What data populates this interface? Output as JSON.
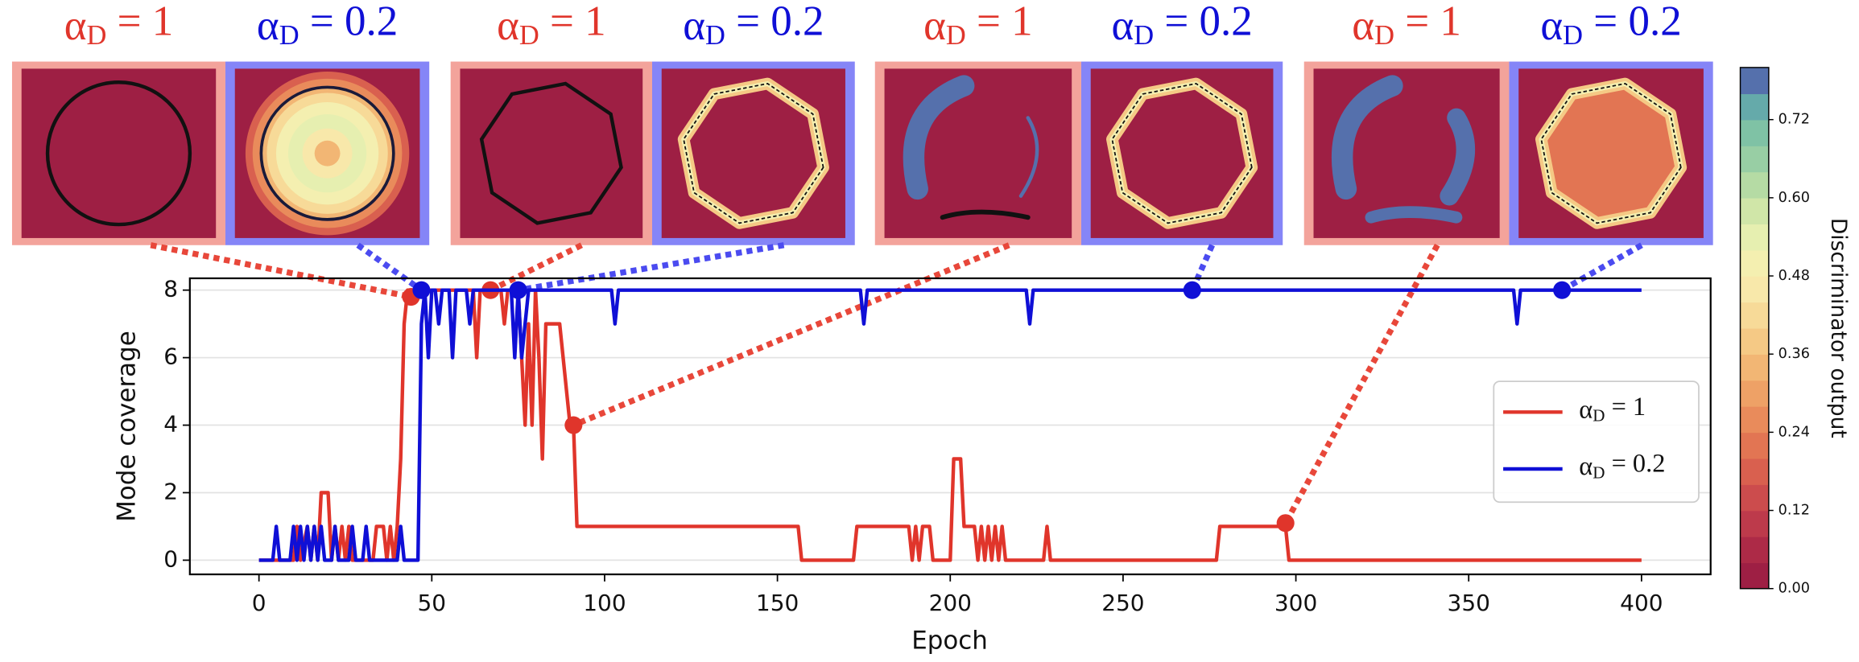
{
  "chart_data": {
    "type": "line",
    "xlabel": "Epoch",
    "ylabel": "Mode coverage",
    "xlim": [
      -20,
      420
    ],
    "ylim": [
      -0.42,
      8.35
    ],
    "xticks": [
      0,
      50,
      100,
      150,
      200,
      250,
      300,
      350,
      400
    ],
    "yticks": [
      0,
      2,
      4,
      6,
      8
    ],
    "grid": true,
    "legend": "right",
    "series": [
      {
        "name": "αD = 1",
        "color": "#e0352b",
        "x": [
          0,
          10,
          11,
          12,
          14,
          15,
          16,
          17,
          18,
          20,
          21,
          22,
          23,
          24,
          25,
          26,
          27,
          33,
          34,
          36,
          37,
          38,
          39,
          40,
          41,
          42,
          43,
          62,
          63,
          64,
          70,
          71,
          72,
          75,
          76,
          77,
          78,
          79,
          80,
          81,
          82,
          83,
          87,
          88,
          89,
          90,
          91,
          92,
          156,
          157,
          172,
          173,
          188,
          189,
          190,
          191,
          192,
          194,
          195,
          200,
          201,
          203,
          204,
          207,
          208,
          209,
          210,
          211,
          212,
          213,
          214,
          215,
          216,
          227,
          228,
          229,
          277,
          278,
          297,
          298,
          400
        ],
        "values": [
          0,
          0,
          1,
          0,
          1,
          0,
          1,
          0,
          2,
          2,
          0,
          1,
          0,
          1,
          0,
          1,
          0,
          0,
          1,
          1,
          0,
          1,
          0,
          1,
          3,
          7,
          8,
          8,
          6,
          8,
          8,
          7,
          8,
          8,
          6,
          4,
          7,
          4,
          8,
          6,
          3,
          7,
          7,
          6,
          5,
          4,
          4,
          1,
          1,
          0,
          0,
          1,
          1,
          0,
          1,
          0,
          1,
          1,
          0,
          0,
          3,
          3,
          1,
          1,
          0,
          1,
          0,
          1,
          0,
          1,
          0,
          1,
          0,
          0,
          1,
          0,
          0,
          1,
          1,
          0,
          0
        ],
        "highlights": {
          "x": [
            44,
            67,
            91,
            297
          ],
          "values": [
            7.8,
            8,
            4,
            1.1
          ]
        }
      },
      {
        "name": "αD = 0.2",
        "color": "#0f0fd6",
        "x": [
          0,
          4,
          5,
          6,
          9,
          10,
          11,
          12,
          13,
          14,
          15,
          16,
          17,
          18,
          19,
          21,
          22,
          23,
          26,
          27,
          28,
          30,
          31,
          32,
          40,
          41,
          42,
          46,
          47,
          48,
          49,
          50,
          51,
          52,
          53,
          55,
          56,
          57,
          60,
          61,
          62,
          73,
          74,
          75,
          76,
          77,
          78,
          102,
          103,
          104,
          174,
          175,
          176,
          222,
          223,
          224,
          363,
          364,
          365,
          400
        ],
        "values": [
          0,
          0,
          1,
          0,
          0,
          1,
          0,
          1,
          0,
          1,
          0,
          1,
          0,
          1,
          0,
          0,
          1,
          0,
          0,
          1,
          0,
          0,
          1,
          0,
          0,
          1,
          0,
          0,
          7,
          8,
          6,
          8,
          8,
          7,
          8,
          8,
          6,
          8,
          8,
          7,
          8,
          8,
          6,
          8,
          6,
          7,
          8,
          8,
          7,
          8,
          8,
          7,
          8,
          8,
          7,
          8,
          8,
          7,
          8,
          8
        ],
        "highlights": {
          "x": [
            47,
            75,
            270,
            377
          ],
          "values": [
            8,
            8,
            8,
            8
          ]
        }
      }
    ],
    "insets": [
      {
        "label": "αD = 1",
        "frame_color": "#f3a39b"
      },
      {
        "label": "αD = 0.2",
        "frame_color": "#8585f7"
      },
      {
        "label": "αD = 1",
        "frame_color": "#f3a39b"
      },
      {
        "label": "αD = 0.2",
        "frame_color": "#8585f7"
      },
      {
        "label": "αD = 1",
        "frame_color": "#f3a39b"
      },
      {
        "label": "αD = 0.2",
        "frame_color": "#8585f7"
      },
      {
        "label": "αD = 1",
        "frame_color": "#f3a39b"
      },
      {
        "label": "αD = 0.2",
        "frame_color": "#8585f7"
      }
    ],
    "colorbar": {
      "label": "Discriminator output",
      "lim": [
        0,
        0.8
      ],
      "ticks": [
        {
          "value": 0,
          "label": "0.00"
        },
        0.12,
        0.24,
        0.36,
        0.48,
        {
          "value": 0.6,
          "label": "0.60"
        },
        0.72
      ],
      "colors": [
        "#9e1f44",
        "#ad2a47",
        "#bd3a4b",
        "#cc4c4d",
        "#d9604f",
        "#e27553",
        "#e98b5b",
        "#eea166",
        "#f2b674",
        "#f5c985",
        "#f7da98",
        "#f8e8aa",
        "#f4efb0",
        "#e6efb0",
        "#d0e6a8",
        "#b5dba4",
        "#98cea4",
        "#7fc2a5",
        "#65aaaa",
        "#5570ac"
      ]
    }
  }
}
